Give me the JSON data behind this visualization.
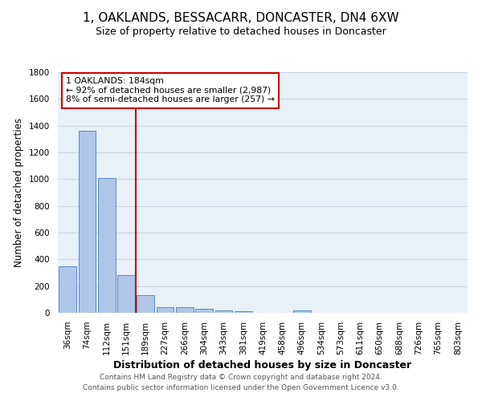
{
  "title": "1, OAKLANDS, BESSACARR, DONCASTER, DN4 6XW",
  "subtitle": "Size of property relative to detached houses in Doncaster",
  "xlabel": "Distribution of detached houses by size in Doncaster",
  "ylabel": "Number of detached properties",
  "bar_labels": [
    "36sqm",
    "74sqm",
    "112sqm",
    "151sqm",
    "189sqm",
    "227sqm",
    "266sqm",
    "304sqm",
    "343sqm",
    "381sqm",
    "419sqm",
    "458sqm",
    "496sqm",
    "534sqm",
    "573sqm",
    "611sqm",
    "650sqm",
    "688sqm",
    "726sqm",
    "765sqm",
    "803sqm"
  ],
  "bar_values": [
    350,
    1360,
    1010,
    285,
    130,
    42,
    42,
    30,
    18,
    15,
    0,
    0,
    18,
    0,
    0,
    0,
    0,
    0,
    0,
    0,
    0
  ],
  "bar_color": "#aec6e8",
  "bar_edge_color": "#5b8cc8",
  "bg_color": "#e8f0f8",
  "grid_color": "#c8d4e0",
  "vline_color": "#cc0000",
  "annotation_text": "1 OAKLANDS: 184sqm\n← 92% of detached houses are smaller (2,987)\n8% of semi-detached houses are larger (257) →",
  "annotation_box_edge": "#cc0000",
  "ylim": [
    0,
    1800
  ],
  "yticks": [
    0,
    200,
    400,
    600,
    800,
    1000,
    1200,
    1400,
    1600,
    1800
  ],
  "footer_line1": "Contains HM Land Registry data © Crown copyright and database right 2024.",
  "footer_line2": "Contains public sector information licensed under the Open Government Licence v3.0.",
  "title_fontsize": 11,
  "subtitle_fontsize": 9,
  "xlabel_fontsize": 9,
  "ylabel_fontsize": 8.5,
  "tick_fontsize": 7.5,
  "footer_fontsize": 6.5,
  "annotation_fontsize": 7.8,
  "vline_x_index": 4
}
